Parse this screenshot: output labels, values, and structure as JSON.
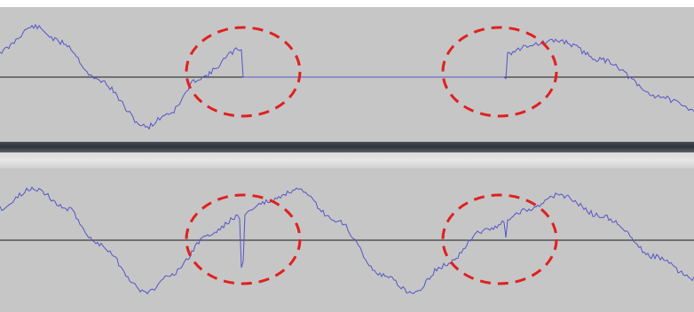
{
  "colors": {
    "track_background": "#c6c6c6",
    "waveform": "#5555c8",
    "zero_line": "#1a1a1a",
    "annotation": "#e02020"
  },
  "tracks": [
    {
      "id": "top",
      "description_marks": [
        "waveform",
        "zero-line",
        "annotation-ellipse-left",
        "annotation-ellipse-right"
      ]
    },
    {
      "id": "bottom",
      "description_marks": [
        "waveform",
        "zero-line",
        "annotation-ellipse-left",
        "annotation-ellipse-right"
      ]
    }
  ]
}
